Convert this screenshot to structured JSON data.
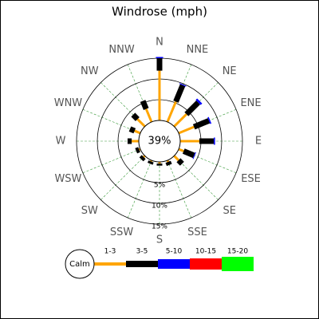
{
  "chart_data": {
    "type": "windrose",
    "title": "Windrose (mph)",
    "categories": [
      "N",
      "NNE",
      "NE",
      "ENE",
      "E",
      "ESE",
      "SE",
      "SSE",
      "S",
      "SSW",
      "SW",
      "WSW",
      "W",
      "WNW",
      "NW",
      "NNW"
    ],
    "series": [
      {
        "name": "1-3",
        "color": "#ffa500",
        "values": [
          12,
          5.3,
          4.2,
          4,
          4.6,
          1.3,
          1.5,
          0.4,
          0.4,
          0.3,
          0.4,
          0.3,
          1.7,
          1.5,
          2.5,
          3.4
        ]
      },
      {
        "name": "3-5",
        "color": "#000000",
        "values": [
          3,
          4.3,
          4,
          3.9,
          3.5,
          2.7,
          1.2,
          0.8,
          0.5,
          0.6,
          0.8,
          0.8,
          1,
          1.2,
          1.5,
          2.1
        ]
      },
      {
        "name": "5-10",
        "color": "#0000ff",
        "values": [
          0.3,
          0.2,
          0.5,
          0.3,
          0.3,
          0.2,
          0,
          0,
          0,
          0,
          0,
          0,
          0,
          0,
          0,
          0
        ]
      },
      {
        "name": "10-15",
        "color": "#ff0000",
        "values": [
          0,
          0,
          0,
          0,
          0,
          0,
          0,
          0,
          0,
          0,
          0,
          0,
          0,
          0,
          0,
          0
        ]
      },
      {
        "name": "15-20",
        "color": "#00ff00",
        "values": [
          0,
          0,
          0,
          0,
          0,
          0,
          0,
          0,
          0,
          0,
          0,
          0,
          0,
          0,
          0,
          0
        ]
      }
    ],
    "calm": {
      "label": "Calm",
      "value": 39,
      "value_label": "39%"
    },
    "rlim": [
      0,
      15
    ],
    "rticks": [
      {
        "value": 5,
        "label": "5%"
      },
      {
        "value": 10,
        "label": "10%"
      },
      {
        "value": 15,
        "label": "15%"
      }
    ],
    "grid": true
  }
}
